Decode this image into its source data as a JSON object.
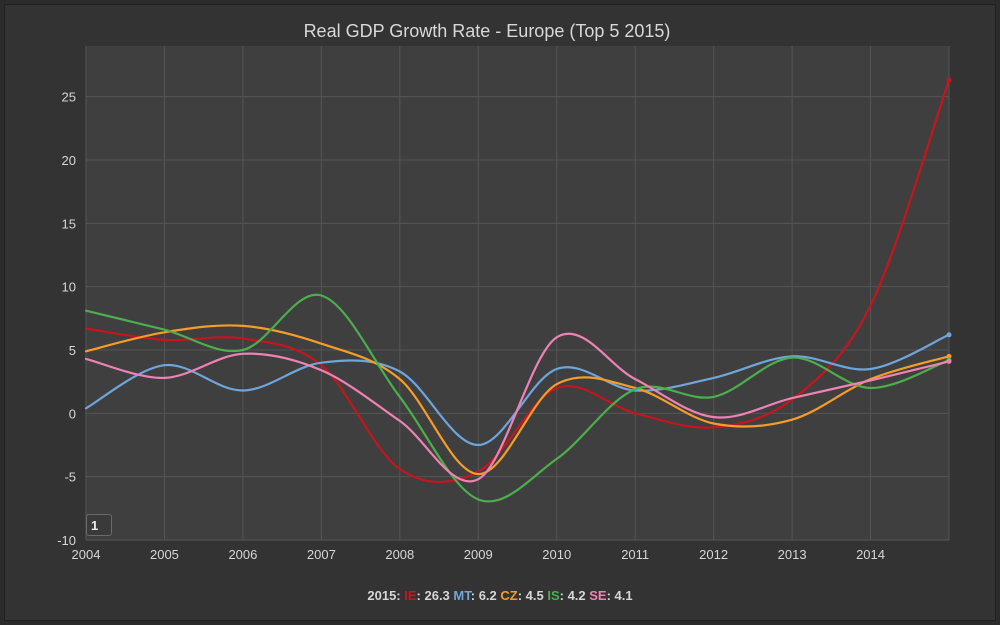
{
  "chart_data": {
    "type": "line",
    "title": "Real GDP Growth Rate - Europe (Top 5 2015)",
    "xlabel": "",
    "ylabel": "",
    "x": [
      2004,
      2005,
      2006,
      2007,
      2008,
      2009,
      2010,
      2011,
      2012,
      2013,
      2014,
      2015
    ],
    "x_tick_labels": [
      "2004",
      "2005",
      "2006",
      "2007",
      "2008",
      "2009",
      "2010",
      "2011",
      "2012",
      "2013",
      "2014"
    ],
    "y_tick_labels": [
      "-10",
      "-5",
      "0",
      "5",
      "10",
      "15",
      "20",
      "25"
    ],
    "ylim": [
      -10,
      29
    ],
    "grid": true,
    "legend_position": "bottom",
    "legend_prefix": "2015:",
    "series": [
      {
        "name": "IE",
        "color": "#c8141e",
        "values": [
          6.7,
          5.8,
          5.9,
          3.8,
          -4.4,
          -4.6,
          2.0,
          0.0,
          -1.1,
          1.1,
          8.5,
          26.3
        ],
        "last_label": "26.3"
      },
      {
        "name": "MT",
        "color": "#6ea6dc",
        "values": [
          0.4,
          3.8,
          1.8,
          4.0,
          3.3,
          -2.5,
          3.5,
          1.8,
          2.8,
          4.5,
          3.5,
          6.2
        ],
        "last_label": "6.2"
      },
      {
        "name": "CZ",
        "color": "#f59d28",
        "values": [
          4.9,
          6.4,
          6.9,
          5.5,
          2.7,
          -4.8,
          2.3,
          2.0,
          -0.8,
          -0.5,
          2.7,
          4.5
        ],
        "last_label": "4.5"
      },
      {
        "name": "IS",
        "color": "#4cae4c",
        "values": [
          8.1,
          6.6,
          5.0,
          9.3,
          1.3,
          -6.8,
          -3.6,
          1.9,
          1.3,
          4.4,
          2.0,
          4.2
        ],
        "last_label": "4.2"
      },
      {
        "name": "SE",
        "color": "#ee82b5",
        "values": [
          4.3,
          2.8,
          4.7,
          3.4,
          -0.6,
          -5.2,
          6.0,
          2.7,
          -0.3,
          1.2,
          2.6,
          4.1
        ],
        "last_label": "4.1"
      }
    ]
  },
  "ui": {
    "navigator_value": "1",
    "text_color": "#d6d6d6",
    "background_color": "#333333",
    "plot_background": "#3f3f3f",
    "grid_color": "#555555"
  }
}
